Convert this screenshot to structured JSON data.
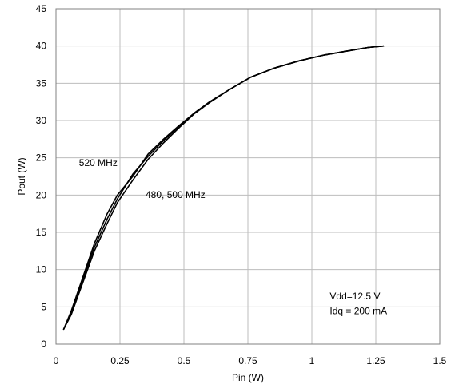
{
  "chart_data": {
    "type": "line",
    "title": "",
    "xlabel": "Pin (W)",
    "ylabel": "Pout (W)",
    "xlim": [
      0,
      1.5
    ],
    "ylim": [
      0,
      45
    ],
    "x_ticks": [
      0,
      0.25,
      0.5,
      0.75,
      1,
      1.25,
      1.5
    ],
    "x_tick_labels": [
      "0",
      "0.25",
      "0.5",
      "0.75",
      "1",
      "1.25",
      "1.5"
    ],
    "y_ticks": [
      0,
      5,
      10,
      15,
      20,
      25,
      30,
      35,
      40,
      45
    ],
    "y_tick_labels": [
      "0",
      "5",
      "10",
      "15",
      "20",
      "25",
      "30",
      "35",
      "40",
      "45"
    ],
    "grid": true,
    "line_color": "#000000",
    "series": [
      {
        "x": [
          0.03,
          0.06,
          0.1,
          0.15,
          0.2,
          0.24,
          0.3,
          0.36,
          0.42,
          0.48,
          0.54,
          0.6,
          0.68,
          0.76,
          0.85,
          0.95,
          1.05,
          1.15,
          1.22,
          1.28
        ],
        "y": [
          2,
          4.5,
          8.5,
          13.5,
          17.5,
          20,
          22.5,
          25.5,
          27.5,
          29.3,
          31,
          32.5,
          34.2,
          35.8,
          37,
          38,
          38.8,
          39.4,
          39.8,
          40
        ]
      },
      {
        "x": [
          0.03,
          0.06,
          0.1,
          0.15,
          0.2,
          0.24,
          0.3,
          0.36,
          0.42,
          0.48,
          0.54,
          0.6,
          0.68,
          0.76,
          0.85,
          0.95,
          1.05,
          1.15,
          1.22,
          1.28
        ],
        "y": [
          2,
          4,
          7.8,
          12.5,
          16.2,
          19,
          22,
          24.8,
          27,
          29,
          30.9,
          32.4,
          34.2,
          35.8,
          37,
          38,
          38.8,
          39.4,
          39.8,
          40
        ]
      },
      {
        "x": [
          0.03,
          0.06,
          0.1,
          0.15,
          0.2,
          0.24,
          0.3,
          0.36,
          0.42,
          0.48,
          0.54,
          0.6,
          0.68,
          0.76,
          0.85,
          0.95,
          1.05,
          1.15,
          1.22,
          1.28
        ],
        "y": [
          2,
          4.2,
          8.2,
          13,
          16.8,
          19.5,
          22.8,
          25.2,
          27.3,
          29.2,
          31,
          32.5,
          34.2,
          35.8,
          37,
          38,
          38.8,
          39.4,
          39.8,
          40
        ]
      }
    ],
    "annotations": [
      {
        "text": "520 MHz",
        "x": 0.09,
        "y": 23.9
      },
      {
        "text": "480, 500 MHz",
        "x": 0.35,
        "y": 19.6
      },
      {
        "text": "Vdd=12.5 V",
        "x": 1.07,
        "y": 6
      },
      {
        "text": "Idq = 200 mA",
        "x": 1.07,
        "y": 4
      }
    ]
  }
}
